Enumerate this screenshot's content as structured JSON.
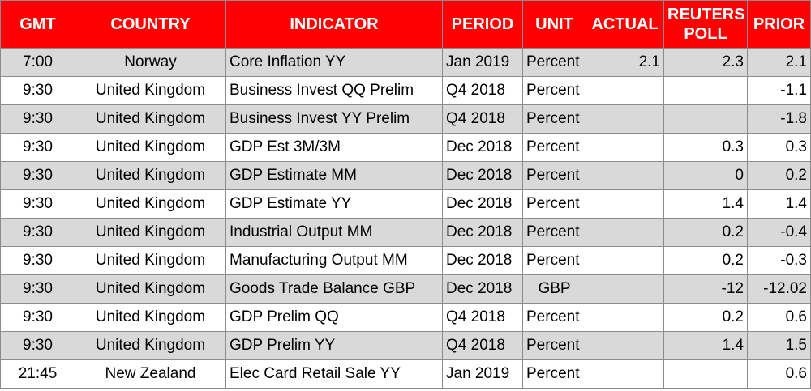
{
  "headers": {
    "gmt": "GMT",
    "country": "COUNTRY",
    "indicator": "INDICATOR",
    "period": "PERIOD",
    "unit": "UNIT",
    "actual": "ACTUAL",
    "poll_line1": "REUTERS",
    "poll_line2": "POLL",
    "prior": "PRIOR"
  },
  "colors": {
    "header_bg": "#ff0000",
    "header_text": "#ffffff",
    "shaded_row": "#d9d9d9"
  },
  "rows": [
    {
      "gmt": "7:00",
      "country": "Norway",
      "indicator": "Core Inflation YY",
      "period": "Jan 2019",
      "unit": "Percent",
      "actual": "2.1",
      "poll": "2.3",
      "prior": "2.1"
    },
    {
      "gmt": "9:30",
      "country": "United Kingdom",
      "indicator": "Business Invest QQ Prelim",
      "period": "Q4 2018",
      "unit": "Percent",
      "actual": "",
      "poll": "",
      "prior": "-1.1"
    },
    {
      "gmt": "9:30",
      "country": "United Kingdom",
      "indicator": "Business Invest YY Prelim",
      "period": "Q4 2018",
      "unit": "Percent",
      "actual": "",
      "poll": "",
      "prior": "-1.8"
    },
    {
      "gmt": "9:30",
      "country": "United Kingdom",
      "indicator": "GDP Est 3M/3M",
      "period": "Dec 2018",
      "unit": "Percent",
      "actual": "",
      "poll": "0.3",
      "prior": "0.3"
    },
    {
      "gmt": "9:30",
      "country": "United Kingdom",
      "indicator": "GDP Estimate MM",
      "period": "Dec 2018",
      "unit": "Percent",
      "actual": "",
      "poll": "0",
      "prior": "0.2"
    },
    {
      "gmt": "9:30",
      "country": "United Kingdom",
      "indicator": "GDP Estimate YY",
      "period": "Dec 2018",
      "unit": "Percent",
      "actual": "",
      "poll": "1.4",
      "prior": "1.4"
    },
    {
      "gmt": "9:30",
      "country": "United Kingdom",
      "indicator": "Industrial Output MM",
      "period": "Dec 2018",
      "unit": "Percent",
      "actual": "",
      "poll": "0.2",
      "prior": "-0.4"
    },
    {
      "gmt": "9:30",
      "country": "United Kingdom",
      "indicator": "Manufacturing Output MM",
      "period": "Dec 2018",
      "unit": "Percent",
      "actual": "",
      "poll": "0.2",
      "prior": "-0.3"
    },
    {
      "gmt": "9:30",
      "country": "United Kingdom",
      "indicator": "Goods Trade Balance GBP",
      "period": "Dec 2018",
      "unit": "GBP",
      "actual": "",
      "poll": "-12",
      "prior": "-12.02"
    },
    {
      "gmt": "9:30",
      "country": "United Kingdom",
      "indicator": "GDP Prelim QQ",
      "period": "Q4 2018",
      "unit": "Percent",
      "actual": "",
      "poll": "0.2",
      "prior": "0.6"
    },
    {
      "gmt": "9:30",
      "country": "United Kingdom",
      "indicator": "GDP Prelim YY",
      "period": "Q4 2018",
      "unit": "Percent",
      "actual": "",
      "poll": "1.4",
      "prior": "1.5"
    },
    {
      "gmt": "21:45",
      "country": "New Zealand",
      "indicator": "Elec Card Retail Sale YY",
      "period": "Jan 2019",
      "unit": "Percent",
      "actual": "",
      "poll": "",
      "prior": "0.6"
    }
  ]
}
